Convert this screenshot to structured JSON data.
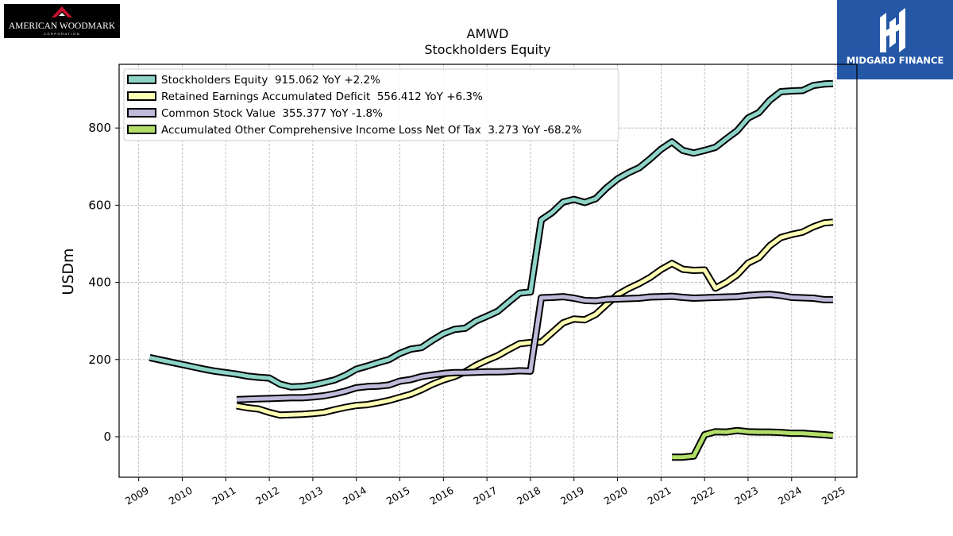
{
  "logos": {
    "left_text": "AMERICAN WOODMARK",
    "left_subtext": "CORPORATION",
    "right_text": "MIDGARD FINANCE"
  },
  "colors": {
    "left_logo_bg": "#000000",
    "left_logo_roof": "#c8102e",
    "right_logo_bg": "#2557a7"
  },
  "chart_data": {
    "type": "line",
    "title": "AMWD",
    "subtitle": "Stockholders  Equity",
    "xlabel": "",
    "ylabel": "USDm",
    "xlim": [
      2008.55,
      2025.5
    ],
    "ylim": [
      -105,
      965
    ],
    "x_ticks": [
      2009,
      2010,
      2011,
      2012,
      2013,
      2014,
      2015,
      2016,
      2017,
      2018,
      2019,
      2020,
      2021,
      2022,
      2023,
      2024,
      2025
    ],
    "y_ticks": [
      0,
      200,
      400,
      600,
      800
    ],
    "grid": true,
    "legend_position": "top-left",
    "series": [
      {
        "name": "Stockholders Equity  915.062 YoY +2.2%",
        "color": "#8dd3c7",
        "points": [
          [
            2009.25,
            205
          ],
          [
            2009.5,
            199
          ],
          [
            2009.75,
            193
          ],
          [
            2010.0,
            187
          ],
          [
            2010.25,
            181
          ],
          [
            2010.5,
            175
          ],
          [
            2010.75,
            170
          ],
          [
            2011.0,
            166
          ],
          [
            2011.25,
            162
          ],
          [
            2011.5,
            157
          ],
          [
            2011.75,
            154
          ],
          [
            2012.0,
            152
          ],
          [
            2012.25,
            136
          ],
          [
            2012.5,
            129
          ],
          [
            2012.75,
            130
          ],
          [
            2013.0,
            134
          ],
          [
            2013.25,
            140
          ],
          [
            2013.5,
            147
          ],
          [
            2013.75,
            159
          ],
          [
            2014.0,
            175
          ],
          [
            2014.25,
            183
          ],
          [
            2014.5,
            192
          ],
          [
            2014.75,
            200
          ],
          [
            2015.0,
            216
          ],
          [
            2015.25,
            227
          ],
          [
            2015.5,
            231
          ],
          [
            2015.75,
            250
          ],
          [
            2016.0,
            267
          ],
          [
            2016.25,
            278
          ],
          [
            2016.5,
            281
          ],
          [
            2016.75,
            300
          ],
          [
            2017.0,
            312
          ],
          [
            2017.25,
            325
          ],
          [
            2017.5,
            349
          ],
          [
            2017.75,
            372
          ],
          [
            2018.0,
            375
          ],
          [
            2018.25,
            562
          ],
          [
            2018.5,
            581
          ],
          [
            2018.75,
            608
          ],
          [
            2019.0,
            615
          ],
          [
            2019.25,
            607
          ],
          [
            2019.5,
            617
          ],
          [
            2019.75,
            645
          ],
          [
            2020.0,
            668
          ],
          [
            2020.25,
            684
          ],
          [
            2020.5,
            697
          ],
          [
            2020.75,
            720
          ],
          [
            2021.0,
            745
          ],
          [
            2021.25,
            764
          ],
          [
            2021.5,
            742
          ],
          [
            2021.75,
            735
          ],
          [
            2022.0,
            742
          ],
          [
            2022.25,
            750
          ],
          [
            2022.5,
            772
          ],
          [
            2022.75,
            793
          ],
          [
            2023.0,
            826
          ],
          [
            2023.25,
            840
          ],
          [
            2023.5,
            872
          ],
          [
            2023.75,
            894
          ],
          [
            2024.0,
            896
          ],
          [
            2024.25,
            897
          ],
          [
            2024.5,
            910
          ],
          [
            2024.75,
            914
          ],
          [
            2024.95,
            915
          ]
        ]
      },
      {
        "name": "Retained Earnings Accumulated Deficit  556.412 YoY +6.3%",
        "color": "#ffffb3",
        "points": [
          [
            2011.25,
            80
          ],
          [
            2011.5,
            75
          ],
          [
            2011.75,
            72
          ],
          [
            2012.0,
            63
          ],
          [
            2012.25,
            56
          ],
          [
            2012.5,
            57
          ],
          [
            2012.75,
            58
          ],
          [
            2013.0,
            60
          ],
          [
            2013.25,
            63
          ],
          [
            2013.5,
            70
          ],
          [
            2013.75,
            76
          ],
          [
            2014.0,
            81
          ],
          [
            2014.25,
            83
          ],
          [
            2014.5,
            88
          ],
          [
            2014.75,
            94
          ],
          [
            2015.0,
            102
          ],
          [
            2015.25,
            110
          ],
          [
            2015.5,
            122
          ],
          [
            2015.75,
            136
          ],
          [
            2016.0,
            147
          ],
          [
            2016.25,
            156
          ],
          [
            2016.5,
            168
          ],
          [
            2016.75,
            185
          ],
          [
            2017.0,
            198
          ],
          [
            2017.25,
            210
          ],
          [
            2017.5,
            226
          ],
          [
            2017.75,
            241
          ],
          [
            2018.0,
            244
          ],
          [
            2018.25,
            245
          ],
          [
            2018.5,
            270
          ],
          [
            2018.75,
            295
          ],
          [
            2019.0,
            305
          ],
          [
            2019.25,
            303
          ],
          [
            2019.5,
            317
          ],
          [
            2019.75,
            343
          ],
          [
            2020.0,
            368
          ],
          [
            2020.25,
            384
          ],
          [
            2020.5,
            397
          ],
          [
            2020.75,
            413
          ],
          [
            2021.0,
            433
          ],
          [
            2021.25,
            449
          ],
          [
            2021.5,
            434
          ],
          [
            2021.75,
            431
          ],
          [
            2022.0,
            432
          ],
          [
            2022.25,
            385
          ],
          [
            2022.5,
            400
          ],
          [
            2022.75,
            420
          ],
          [
            2023.0,
            450
          ],
          [
            2023.25,
            464
          ],
          [
            2023.5,
            495
          ],
          [
            2023.75,
            516
          ],
          [
            2024.0,
            524
          ],
          [
            2024.25,
            530
          ],
          [
            2024.5,
            544
          ],
          [
            2024.75,
            554
          ],
          [
            2024.95,
            556
          ]
        ]
      },
      {
        "name": "Common Stock Value  355.377 YoY -1.8%",
        "color": "#bebada",
        "points": [
          [
            2011.25,
            96
          ],
          [
            2011.5,
            97
          ],
          [
            2011.75,
            98
          ],
          [
            2012.0,
            99
          ],
          [
            2012.25,
            100
          ],
          [
            2012.5,
            101
          ],
          [
            2012.75,
            101
          ],
          [
            2013.0,
            103
          ],
          [
            2013.25,
            106
          ],
          [
            2013.5,
            111
          ],
          [
            2013.75,
            118
          ],
          [
            2014.0,
            127
          ],
          [
            2014.25,
            130
          ],
          [
            2014.5,
            131
          ],
          [
            2014.75,
            134
          ],
          [
            2015.0,
            144
          ],
          [
            2015.25,
            148
          ],
          [
            2015.5,
            156
          ],
          [
            2015.75,
            160
          ],
          [
            2016.0,
            164
          ],
          [
            2016.25,
            166
          ],
          [
            2016.5,
            166
          ],
          [
            2016.75,
            167
          ],
          [
            2017.0,
            168
          ],
          [
            2017.25,
            168
          ],
          [
            2017.5,
            169
          ],
          [
            2017.75,
            171
          ],
          [
            2018.0,
            170
          ],
          [
            2018.25,
            360
          ],
          [
            2018.5,
            361
          ],
          [
            2018.75,
            363
          ],
          [
            2019.0,
            359
          ],
          [
            2019.25,
            353
          ],
          [
            2019.5,
            352
          ],
          [
            2019.75,
            356
          ],
          [
            2020.0,
            357
          ],
          [
            2020.25,
            358
          ],
          [
            2020.5,
            359
          ],
          [
            2020.75,
            362
          ],
          [
            2021.0,
            363
          ],
          [
            2021.25,
            364
          ],
          [
            2021.5,
            361
          ],
          [
            2021.75,
            359
          ],
          [
            2022.0,
            360
          ],
          [
            2022.25,
            361
          ],
          [
            2022.5,
            362
          ],
          [
            2022.75,
            363
          ],
          [
            2023.0,
            366
          ],
          [
            2023.25,
            368
          ],
          [
            2023.5,
            369
          ],
          [
            2023.75,
            366
          ],
          [
            2024.0,
            361
          ],
          [
            2024.25,
            360
          ],
          [
            2024.5,
            359
          ],
          [
            2024.75,
            355
          ],
          [
            2024.95,
            355
          ]
        ]
      },
      {
        "name": "Accumulated Other Comprehensive Income Loss Net Of Tax  3.273 YoY -68.2%",
        "color": "#b3de69",
        "points": [
          [
            2021.25,
            -53
          ],
          [
            2021.5,
            -53
          ],
          [
            2021.75,
            -50
          ],
          [
            2022.0,
            5
          ],
          [
            2022.25,
            13
          ],
          [
            2022.5,
            12
          ],
          [
            2022.75,
            16
          ],
          [
            2023.0,
            13
          ],
          [
            2023.25,
            12
          ],
          [
            2023.5,
            12
          ],
          [
            2023.75,
            11
          ],
          [
            2024.0,
            9
          ],
          [
            2024.25,
            9
          ],
          [
            2024.5,
            7
          ],
          [
            2024.75,
            5
          ],
          [
            2024.95,
            3
          ]
        ]
      }
    ]
  }
}
